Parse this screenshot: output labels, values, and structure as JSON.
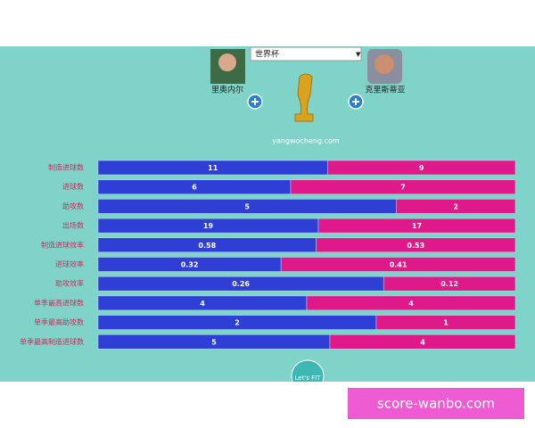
{
  "header": {
    "select": "世界杯",
    "site": "yangwocheng.com",
    "button": "Let's FIT"
  },
  "watermark": "score-wanbo.com",
  "chart_data": {
    "type": "bar",
    "stacked": true,
    "categories": [
      "制造进球数",
      "进球数",
      "助攻数",
      "出场数",
      "制造进球效率",
      "进球效率",
      "助攻效率",
      "单季最高进球数",
      "单季最高助攻数",
      "单季最高制造进球数"
    ],
    "series": [
      {
        "name": "里奥内尔",
        "color": "#2f3fd6",
        "values": [
          11,
          6,
          5,
          19,
          0.58,
          0.32,
          0.26,
          4,
          2,
          5
        ]
      },
      {
        "name": "克里斯蒂亚",
        "color": "#e0198a",
        "values": [
          9,
          7,
          2,
          17,
          0.53,
          0.41,
          0.12,
          4,
          1,
          4
        ]
      }
    ]
  }
}
